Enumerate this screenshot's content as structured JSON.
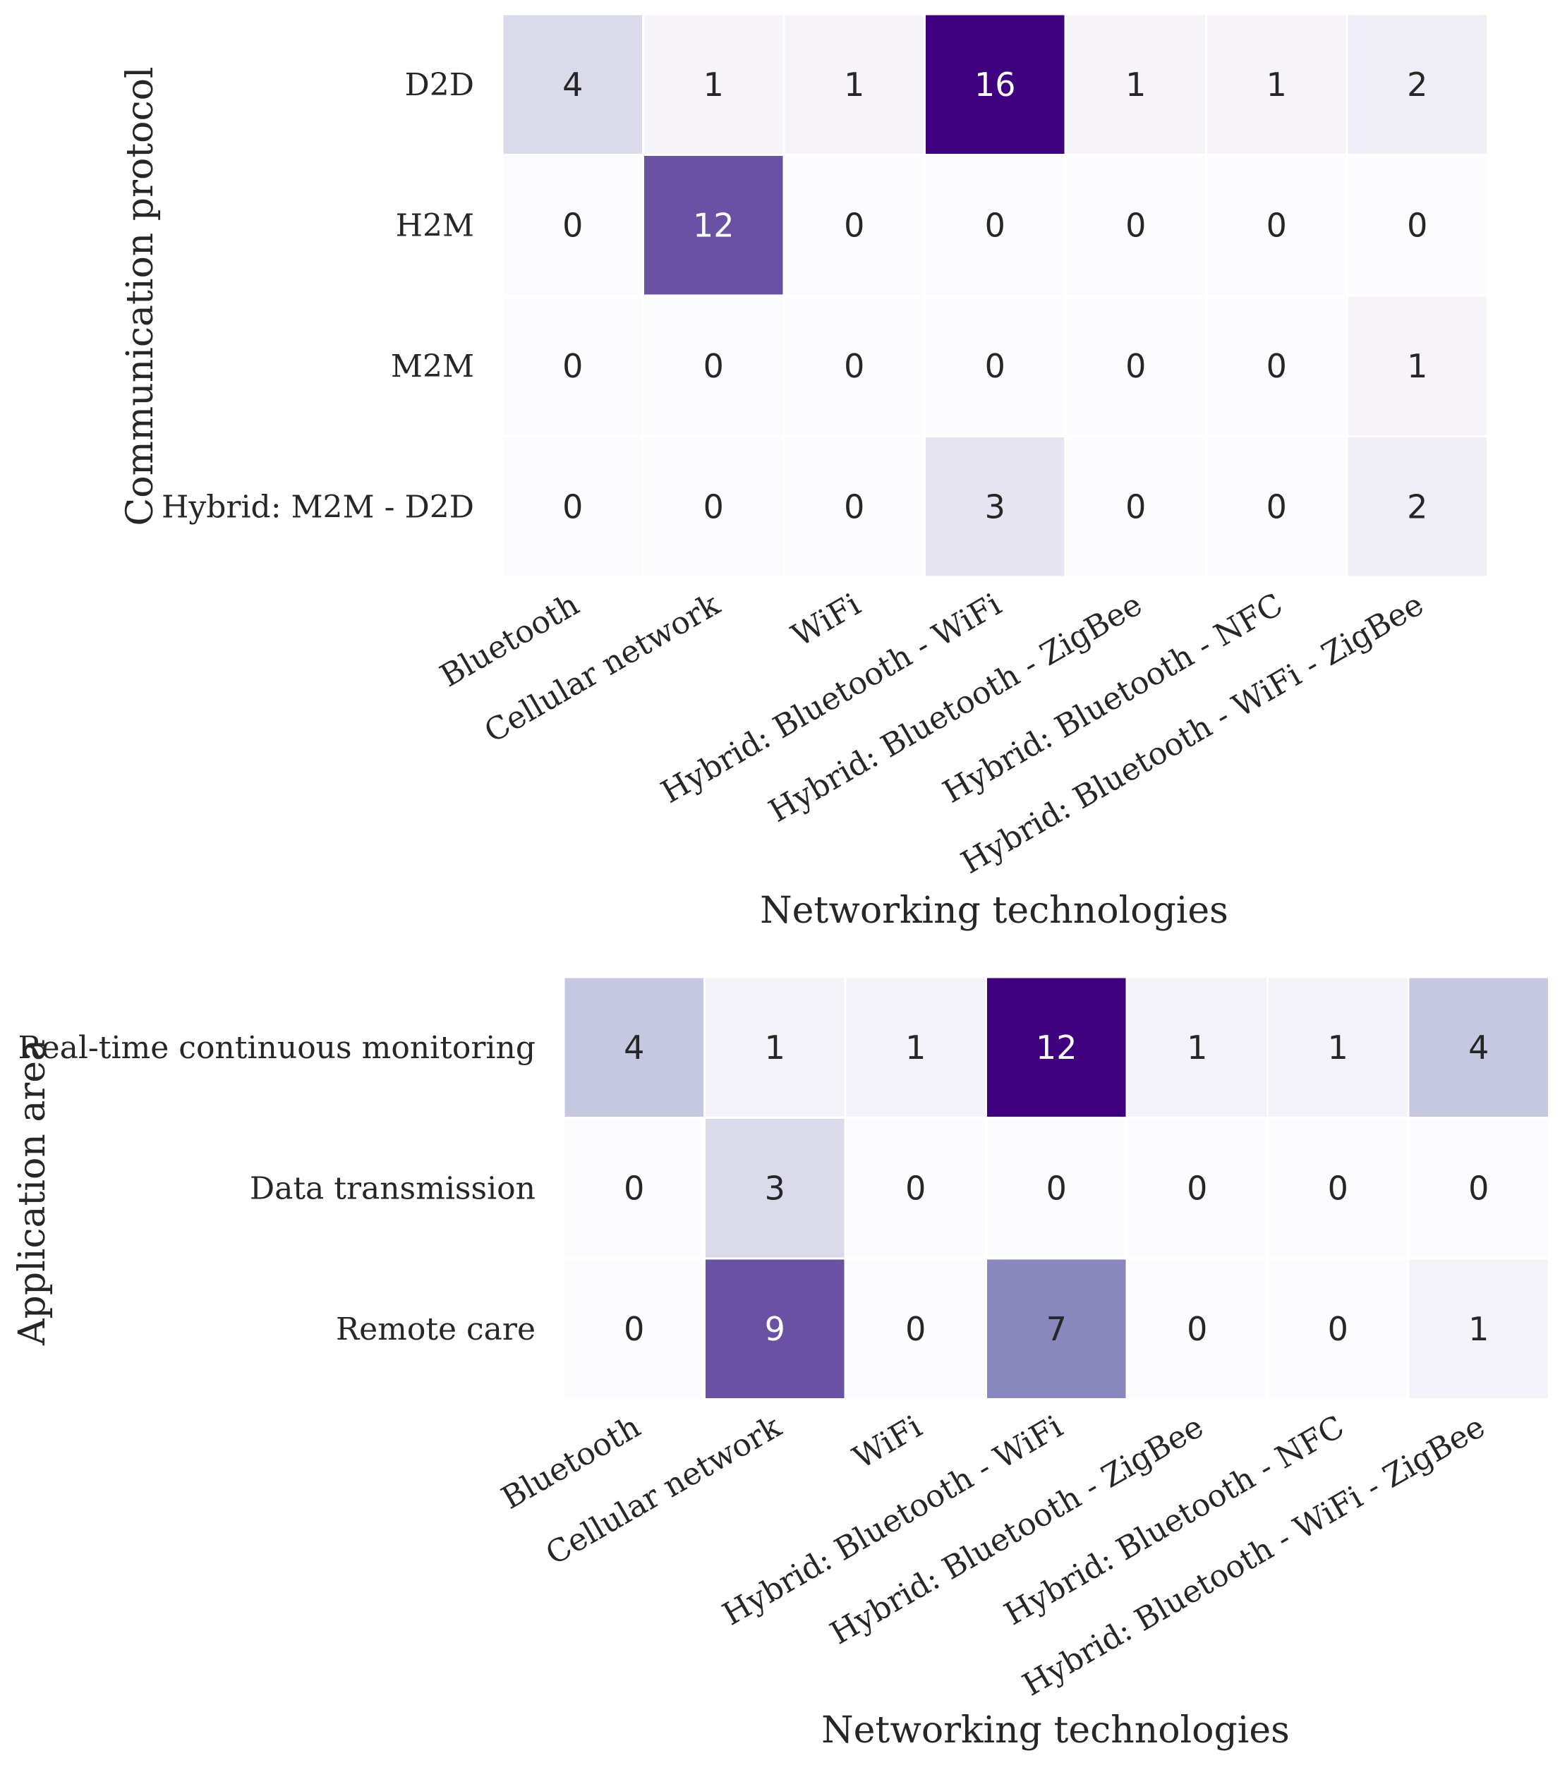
{
  "chart_data": [
    {
      "type": "heatmap",
      "title": "",
      "xlabel": "Networking technologies",
      "ylabel": "Communication protocol",
      "colormap": "Purples",
      "x_categories": [
        "Bluetooth",
        "Cellular network",
        "WiFi",
        "Hybrid: Bluetooth - WiFi",
        "Hybrid: Bluetooth - ZigBee",
        "Hybrid: Bluetooth - NFC",
        "Hybrid: Bluetooth - WiFi - ZigBee"
      ],
      "y_categories": [
        "D2D",
        "H2M",
        "M2M",
        "Hybrid: M2M - D2D"
      ],
      "values": [
        [
          4,
          1,
          1,
          16,
          1,
          1,
          2
        ],
        [
          0,
          12,
          0,
          0,
          0,
          0,
          0
        ],
        [
          0,
          0,
          0,
          0,
          0,
          0,
          1
        ],
        [
          0,
          0,
          0,
          3,
          0,
          0,
          2
        ]
      ],
      "vmin": 0,
      "vmax": 16,
      "grid": false,
      "colorbar": false
    },
    {
      "type": "heatmap",
      "title": "",
      "xlabel": "Networking technologies",
      "ylabel": "Application area",
      "colormap": "Purples",
      "x_categories": [
        "Bluetooth",
        "Cellular network",
        "WiFi",
        "Hybrid: Bluetooth - WiFi",
        "Hybrid: Bluetooth - ZigBee",
        "Hybrid: Bluetooth - NFC",
        "Hybrid: Bluetooth - WiFi - ZigBee"
      ],
      "y_categories": [
        "Real-time continuous monitoring",
        "Data transmission",
        "Remote care"
      ],
      "values": [
        [
          4,
          1,
          1,
          12,
          1,
          1,
          4
        ],
        [
          0,
          3,
          0,
          0,
          0,
          0,
          0
        ],
        [
          0,
          9,
          0,
          7,
          0,
          0,
          1
        ]
      ],
      "vmin": 0,
      "vmax": 12,
      "grid": false,
      "colorbar": false
    }
  ]
}
